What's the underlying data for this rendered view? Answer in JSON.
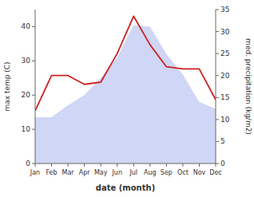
{
  "chart_data": {
    "type": "line",
    "categories": [
      "Jan",
      "Feb",
      "Mar",
      "Apr",
      "May",
      "Jun",
      "Jul",
      "Aug",
      "Sep",
      "Oct",
      "Nov",
      "Dec"
    ],
    "series": [
      {
        "type": "area",
        "color": "#b0bbee",
        "values": [
          13.5,
          13.5,
          17.0,
          20.0,
          25.0,
          31.0,
          40.5,
          40.0,
          32.0,
          26.0,
          18.0,
          16.0
        ]
      },
      {
        "type": "line",
        "color": "#cc2222",
        "axis": "y2",
        "values": [
          12.0,
          20.0,
          20.0,
          18.0,
          18.5,
          25.0,
          33.5,
          27.0,
          22.0,
          21.5,
          21.5,
          14.5
        ]
      }
    ],
    "ylim": [
      0,
      45
    ],
    "yticks": [
      0,
      10,
      20,
      30,
      40
    ],
    "y2lim": [
      0,
      35
    ],
    "y2ticks": [
      0,
      5,
      10,
      15,
      20,
      25,
      30,
      35
    ],
    "xlabel": "date (month)",
    "ylabel": "max temp (C)",
    "y2label": "med. precipitation (kg/m2)",
    "grid": false
  }
}
